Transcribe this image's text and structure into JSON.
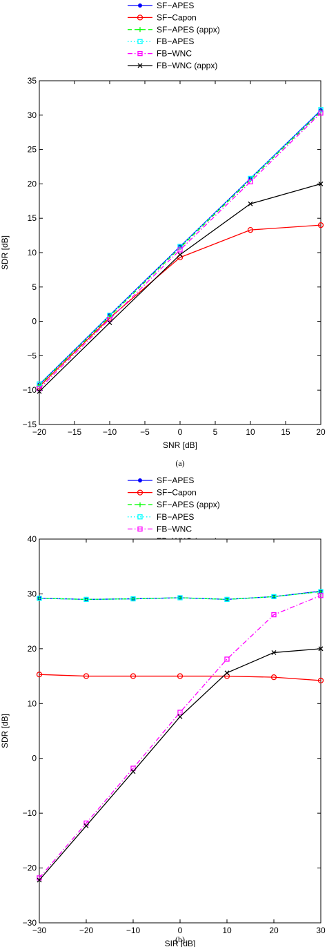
{
  "chart_data": [
    {
      "type": "line",
      "caption": "(a)",
      "xlabel": "SNR [dB]",
      "ylabel": "SDR [dB]",
      "xlim": [
        -20,
        20
      ],
      "ylim": [
        -15,
        35
      ],
      "xticks": [
        -20,
        -15,
        -10,
        -5,
        0,
        5,
        10,
        15,
        20
      ],
      "yticks": [
        -15,
        -10,
        -5,
        0,
        5,
        10,
        15,
        20,
        25,
        30,
        35
      ],
      "grid": false,
      "legend_position": "above the plot",
      "x": [
        -20,
        -10,
        0,
        10,
        20
      ],
      "series": [
        {
          "name": "SF−APES",
          "color": "#0000ff",
          "dash": "solid",
          "marker": "dot",
          "values": [
            -9.2,
            0.9,
            10.9,
            20.8,
            30.7
          ]
        },
        {
          "name": "SF−Capon",
          "color": "#ff0000",
          "dash": "solid",
          "marker": "circle",
          "values": [
            -9.5,
            0.5,
            9.3,
            13.3,
            14.0
          ]
        },
        {
          "name": "SF−APES (appx)",
          "color": "#00ff00",
          "dash": "dash",
          "marker": "plus",
          "values": [
            -9.3,
            0.7,
            10.7,
            20.6,
            30.5
          ]
        },
        {
          "name": "FB−APES",
          "color": "#00ffff",
          "dash": "dot",
          "marker": "square",
          "values": [
            -9.1,
            0.9,
            10.9,
            20.8,
            30.8
          ]
        },
        {
          "name": "FB−WNC",
          "color": "#ff00ff",
          "dash": "dashdot",
          "marker": "square",
          "values": [
            -9.8,
            0.3,
            10.4,
            20.3,
            30.3
          ]
        },
        {
          "name": "FB−WNC (appx)",
          "color": "#000000",
          "dash": "solid",
          "marker": "x",
          "values": [
            -10.2,
            -0.2,
            9.7,
            17.1,
            20.0
          ]
        }
      ]
    },
    {
      "type": "line",
      "caption": "(b)",
      "xlabel": "SIR [dB]",
      "ylabel": "SDR [dB]",
      "xlim": [
        -30,
        30
      ],
      "ylim": [
        -30,
        40
      ],
      "xticks": [
        -30,
        -20,
        -10,
        0,
        10,
        20,
        30
      ],
      "yticks": [
        -30,
        -20,
        -10,
        0,
        10,
        20,
        30,
        40
      ],
      "grid": false,
      "legend_position": "above the plot",
      "x": [
        -30,
        -20,
        -10,
        0,
        10,
        20,
        30
      ],
      "series": [
        {
          "name": "SF−APES",
          "color": "#0000ff",
          "dash": "solid",
          "marker": "dot",
          "values": [
            29.2,
            29.0,
            29.1,
            29.3,
            29.0,
            29.5,
            30.5
          ]
        },
        {
          "name": "SF−Capon",
          "color": "#ff0000",
          "dash": "solid",
          "marker": "circle",
          "values": [
            15.3,
            15.0,
            15.0,
            15.0,
            15.0,
            14.8,
            14.2
          ]
        },
        {
          "name": "SF−APES (appx)",
          "color": "#00ff00",
          "dash": "dash",
          "marker": "plus",
          "values": [
            29.2,
            29.0,
            29.1,
            29.3,
            29.0,
            29.5,
            30.4
          ]
        },
        {
          "name": "FB−APES",
          "color": "#00ffff",
          "dash": "dot",
          "marker": "square",
          "values": [
            29.2,
            29.0,
            29.1,
            29.3,
            29.0,
            29.5,
            30.4
          ]
        },
        {
          "name": "FB−WNC",
          "color": "#ff00ff",
          "dash": "dashdot",
          "marker": "square",
          "values": [
            -21.8,
            -11.8,
            -1.8,
            8.4,
            18.1,
            26.2,
            29.7
          ]
        },
        {
          "name": "FB−WNC (appx)",
          "color": "#000000",
          "dash": "solid",
          "marker": "x",
          "values": [
            -22.2,
            -12.3,
            -2.4,
            7.6,
            15.6,
            19.3,
            20.0
          ]
        }
      ]
    }
  ]
}
